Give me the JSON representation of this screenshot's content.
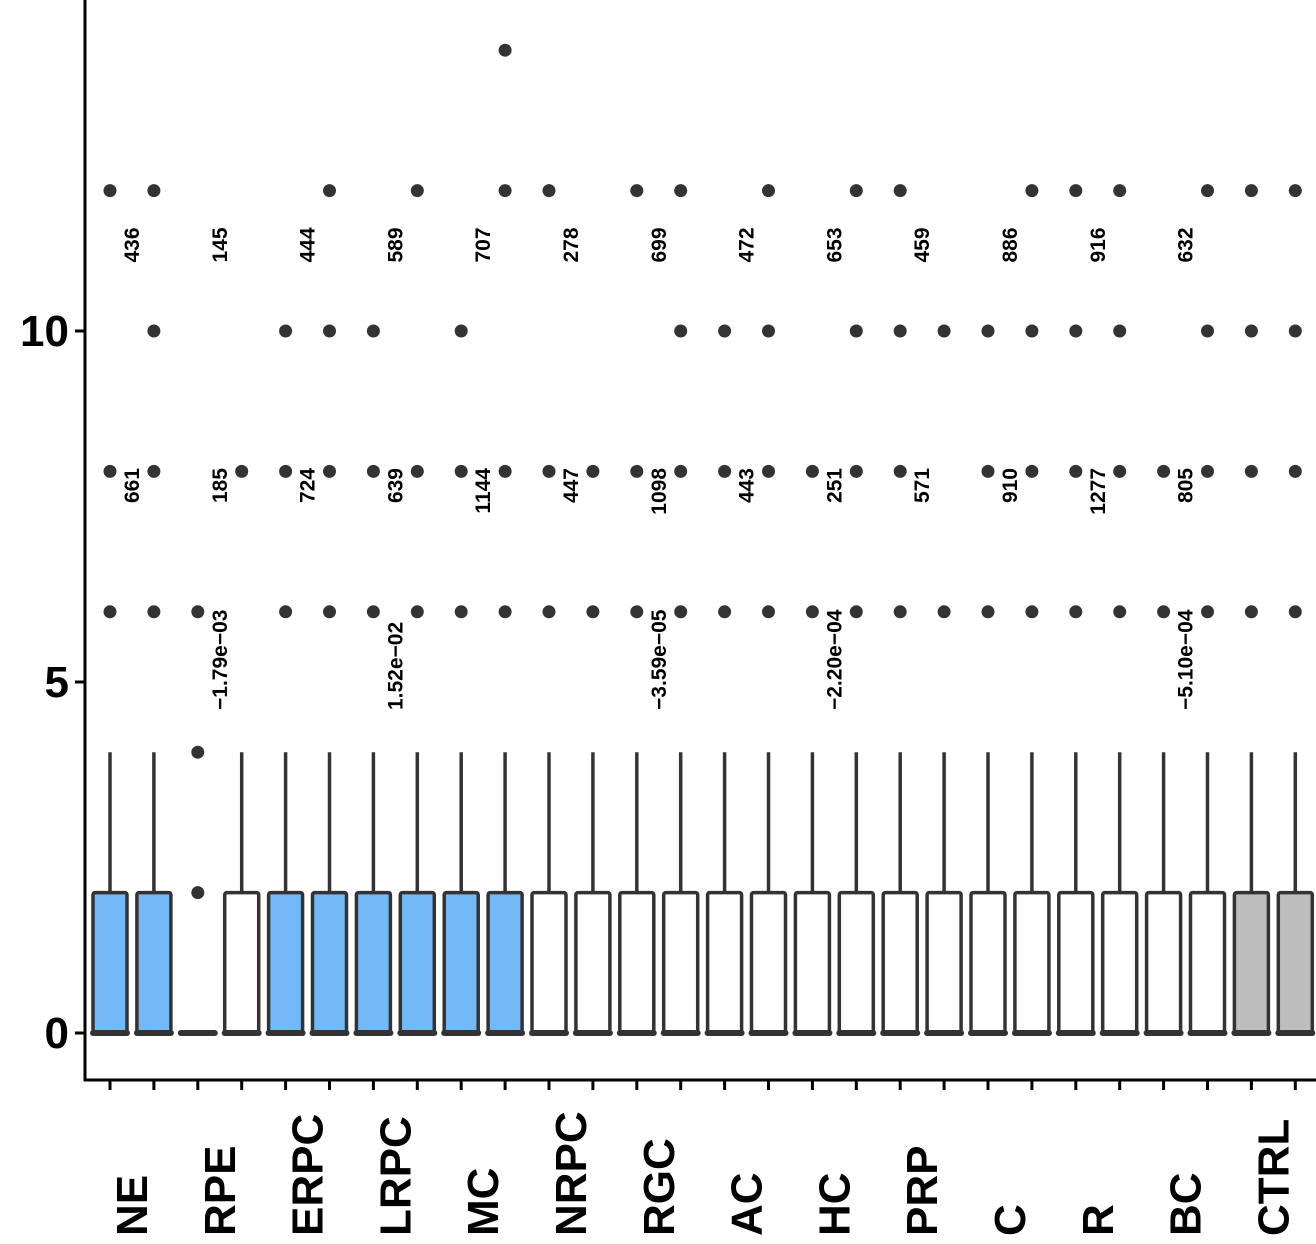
{
  "chart_data": {
    "type": "box",
    "title": "",
    "xlabel": "",
    "ylabel": "",
    "ylim": [
      0,
      15
    ],
    "yticks": [
      0,
      5,
      10
    ],
    "y_tick_labels": [
      "0",
      "5",
      "10"
    ],
    "categories": [
      "NE",
      "RPE",
      "ERPC",
      "LRPC",
      "MC",
      "NRPC",
      "RGC",
      "AC",
      "HC",
      "PRP",
      "C",
      "R",
      "BC",
      "CTRL"
    ],
    "colors": {
      "highlight": "#74b9f7",
      "control": "#bebebe",
      "default": "#ffffff",
      "outline": "#333333",
      "points": "#333333"
    },
    "boxes": [
      {
        "category": "NE",
        "group": 1,
        "fill": "highlight",
        "q1": 0,
        "median": 0,
        "q3": 2,
        "whisker_low": 0,
        "whisker_high": 4,
        "outliers": [
          6,
          8,
          12
        ]
      },
      {
        "category": "NE",
        "group": 2,
        "fill": "highlight",
        "q1": 0,
        "median": 0,
        "q3": 2,
        "whisker_low": 0,
        "whisker_high": 4,
        "outliers": [
          6,
          8,
          10,
          12
        ]
      },
      {
        "category": "RPE",
        "group": 1,
        "fill": "default",
        "q1": 0,
        "median": 0,
        "q3": 0,
        "whisker_low": 0,
        "whisker_high": 0,
        "outliers": [
          2,
          4,
          6
        ]
      },
      {
        "category": "RPE",
        "group": 2,
        "fill": "default",
        "q1": 0,
        "median": 0,
        "q3": 2,
        "whisker_low": 0,
        "whisker_high": 4,
        "outliers": [
          8
        ]
      },
      {
        "category": "ERPC",
        "group": 1,
        "fill": "highlight",
        "q1": 0,
        "median": 0,
        "q3": 2,
        "whisker_low": 0,
        "whisker_high": 4,
        "outliers": [
          6,
          8,
          10
        ]
      },
      {
        "category": "ERPC",
        "group": 2,
        "fill": "highlight",
        "q1": 0,
        "median": 0,
        "q3": 2,
        "whisker_low": 0,
        "whisker_high": 4,
        "outliers": [
          6,
          8,
          10,
          12
        ]
      },
      {
        "category": "LRPC",
        "group": 1,
        "fill": "highlight",
        "q1": 0,
        "median": 0,
        "q3": 2,
        "whisker_low": 0,
        "whisker_high": 4,
        "outliers": [
          6,
          8,
          10
        ]
      },
      {
        "category": "LRPC",
        "group": 2,
        "fill": "highlight",
        "q1": 0,
        "median": 0,
        "q3": 2,
        "whisker_low": 0,
        "whisker_high": 4,
        "outliers": [
          6,
          8,
          12
        ]
      },
      {
        "category": "MC",
        "group": 1,
        "fill": "highlight",
        "q1": 0,
        "median": 0,
        "q3": 2,
        "whisker_low": 0,
        "whisker_high": 4,
        "outliers": [
          6,
          8,
          10
        ]
      },
      {
        "category": "MC",
        "group": 2,
        "fill": "highlight",
        "q1": 0,
        "median": 0,
        "q3": 2,
        "whisker_low": 0,
        "whisker_high": 4,
        "outliers": [
          6,
          8,
          12,
          14
        ]
      },
      {
        "category": "NRPC",
        "group": 1,
        "fill": "default",
        "q1": 0,
        "median": 0,
        "q3": 2,
        "whisker_low": 0,
        "whisker_high": 4,
        "outliers": [
          6,
          8,
          12
        ]
      },
      {
        "category": "NRPC",
        "group": 2,
        "fill": "default",
        "q1": 0,
        "median": 0,
        "q3": 2,
        "whisker_low": 0,
        "whisker_high": 4,
        "outliers": [
          6,
          8
        ]
      },
      {
        "category": "RGC",
        "group": 1,
        "fill": "default",
        "q1": 0,
        "median": 0,
        "q3": 2,
        "whisker_low": 0,
        "whisker_high": 4,
        "outliers": [
          6,
          8,
          12
        ]
      },
      {
        "category": "RGC",
        "group": 2,
        "fill": "default",
        "q1": 0,
        "median": 0,
        "q3": 2,
        "whisker_low": 0,
        "whisker_high": 4,
        "outliers": [
          6,
          8,
          10,
          12
        ]
      },
      {
        "category": "AC",
        "group": 1,
        "fill": "default",
        "q1": 0,
        "median": 0,
        "q3": 2,
        "whisker_low": 0,
        "whisker_high": 4,
        "outliers": [
          6,
          8,
          10
        ]
      },
      {
        "category": "AC",
        "group": 2,
        "fill": "default",
        "q1": 0,
        "median": 0,
        "q3": 2,
        "whisker_low": 0,
        "whisker_high": 4,
        "outliers": [
          6,
          8,
          10,
          12
        ]
      },
      {
        "category": "HC",
        "group": 1,
        "fill": "default",
        "q1": 0,
        "median": 0,
        "q3": 2,
        "whisker_low": 0,
        "whisker_high": 4,
        "outliers": [
          6,
          8
        ]
      },
      {
        "category": "HC",
        "group": 2,
        "fill": "default",
        "q1": 0,
        "median": 0,
        "q3": 2,
        "whisker_low": 0,
        "whisker_high": 4,
        "outliers": [
          6,
          8,
          10,
          12
        ]
      },
      {
        "category": "PRP",
        "group": 1,
        "fill": "default",
        "q1": 0,
        "median": 0,
        "q3": 2,
        "whisker_low": 0,
        "whisker_high": 4,
        "outliers": [
          6,
          8,
          10,
          12
        ]
      },
      {
        "category": "PRP",
        "group": 2,
        "fill": "default",
        "q1": 0,
        "median": 0,
        "q3": 2,
        "whisker_low": 0,
        "whisker_high": 4,
        "outliers": [
          6,
          10
        ]
      },
      {
        "category": "C",
        "group": 1,
        "fill": "default",
        "q1": 0,
        "median": 0,
        "q3": 2,
        "whisker_low": 0,
        "whisker_high": 4,
        "outliers": [
          6,
          8,
          10
        ]
      },
      {
        "category": "C",
        "group": 2,
        "fill": "default",
        "q1": 0,
        "median": 0,
        "q3": 2,
        "whisker_low": 0,
        "whisker_high": 4,
        "outliers": [
          6,
          8,
          10,
          12
        ]
      },
      {
        "category": "R",
        "group": 1,
        "fill": "default",
        "q1": 0,
        "median": 0,
        "q3": 2,
        "whisker_low": 0,
        "whisker_high": 4,
        "outliers": [
          6,
          8,
          10,
          12
        ]
      },
      {
        "category": "R",
        "group": 2,
        "fill": "default",
        "q1": 0,
        "median": 0,
        "q3": 2,
        "whisker_low": 0,
        "whisker_high": 4,
        "outliers": [
          6,
          8,
          10,
          12
        ]
      },
      {
        "category": "BC",
        "group": 1,
        "fill": "default",
        "q1": 0,
        "median": 0,
        "q3": 2,
        "whisker_low": 0,
        "whisker_high": 4,
        "outliers": [
          6,
          8
        ]
      },
      {
        "category": "BC",
        "group": 2,
        "fill": "default",
        "q1": 0,
        "median": 0,
        "q3": 2,
        "whisker_low": 0,
        "whisker_high": 4,
        "outliers": [
          6,
          8,
          10,
          12
        ]
      },
      {
        "category": "CTRL",
        "group": 1,
        "fill": "control",
        "q1": 0,
        "median": 0,
        "q3": 2,
        "whisker_low": 0,
        "whisker_high": 4,
        "outliers": [
          6,
          8,
          10,
          12
        ]
      },
      {
        "category": "CTRL",
        "group": 2,
        "fill": "control",
        "q1": 0,
        "median": 0,
        "q3": 2,
        "whisker_low": 0,
        "whisker_high": 4,
        "outliers": [
          6,
          8,
          10,
          12
        ]
      }
    ],
    "annotations": {
      "upper_counts": [
        {
          "category": "NE",
          "text": "436"
        },
        {
          "category": "RPE",
          "text": "145"
        },
        {
          "category": "ERPC",
          "text": "444"
        },
        {
          "category": "LRPC",
          "text": "589"
        },
        {
          "category": "MC",
          "text": "707"
        },
        {
          "category": "NRPC",
          "text": "278"
        },
        {
          "category": "RGC",
          "text": "699"
        },
        {
          "category": "AC",
          "text": "472"
        },
        {
          "category": "HC",
          "text": "653"
        },
        {
          "category": "PRP",
          "text": "459"
        },
        {
          "category": "C",
          "text": "886"
        },
        {
          "category": "R",
          "text": "916"
        },
        {
          "category": "BC",
          "text": "632"
        }
      ],
      "lower_counts": [
        {
          "category": "NE",
          "text": "661"
        },
        {
          "category": "RPE",
          "text": "185"
        },
        {
          "category": "ERPC",
          "text": "724"
        },
        {
          "category": "LRPC",
          "text": "639"
        },
        {
          "category": "MC",
          "text": "1144"
        },
        {
          "category": "NRPC",
          "text": "447"
        },
        {
          "category": "RGC",
          "text": "1098"
        },
        {
          "category": "AC",
          "text": "443"
        },
        {
          "category": "HC",
          "text": "251"
        },
        {
          "category": "PRP",
          "text": "571"
        },
        {
          "category": "C",
          "text": "910"
        },
        {
          "category": "R",
          "text": "1277"
        },
        {
          "category": "BC",
          "text": "805"
        }
      ],
      "stats": [
        {
          "category": "RPE",
          "text": "−1.79e−03"
        },
        {
          "category": "LRPC",
          "text": "1.52e−02"
        },
        {
          "category": "RGC",
          "text": "−3.59e−05"
        },
        {
          "category": "HC",
          "text": "−2.20e−04"
        },
        {
          "category": "BC",
          "text": "−5.10e−04"
        }
      ]
    },
    "grid": false,
    "legend": "none"
  }
}
